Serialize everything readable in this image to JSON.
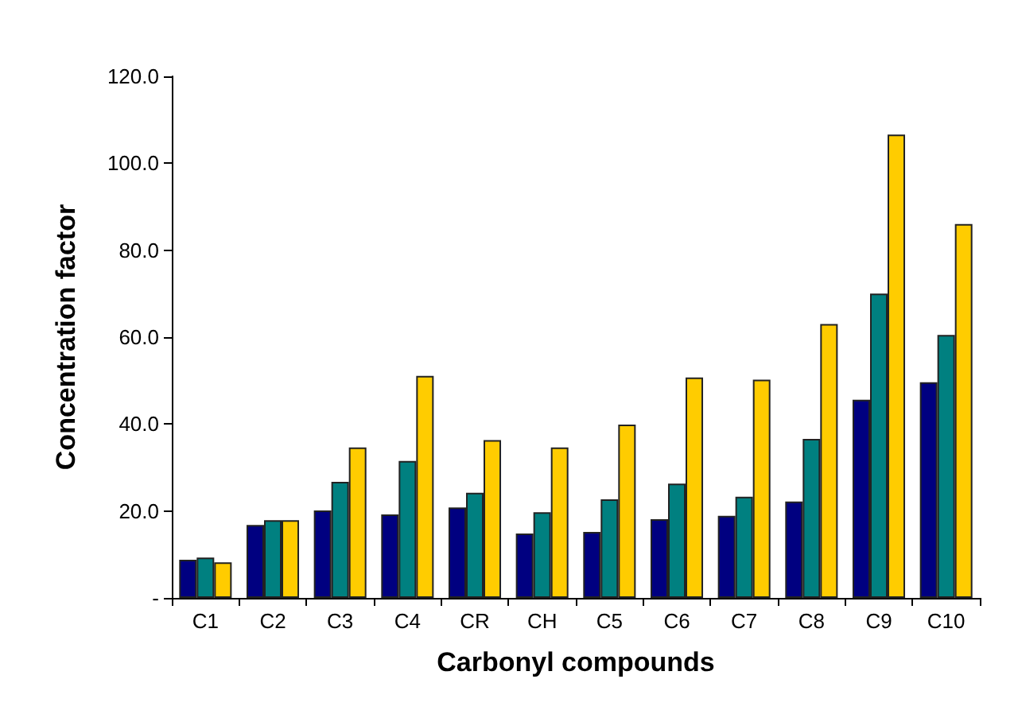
{
  "chart_data": {
    "type": "bar",
    "xlabel": "Carbonyl compounds",
    "ylabel": "Concentration factor",
    "categories": [
      "C1",
      "C2",
      "C3",
      "C4",
      "CR",
      "CH",
      "C5",
      "C6",
      "C7",
      "C8",
      "C9",
      "C10"
    ],
    "series": [
      {
        "color": "#000080",
        "values": [
          8.8,
          16.8,
          20.1,
          19.2,
          20.8,
          14.8,
          15.2,
          18.1,
          18.9,
          22.2,
          45.6,
          49.6
        ]
      },
      {
        "color": "#008080",
        "values": [
          9.3,
          17.9,
          26.7,
          31.5,
          24.2,
          19.7,
          22.7,
          26.3,
          23.3,
          36.6,
          70.0,
          60.5
        ]
      },
      {
        "color": "#ffcc00",
        "values": [
          8.2,
          17.9,
          34.6,
          51.1,
          36.3,
          34.6,
          39.9,
          50.7,
          50.2,
          63.0,
          106.6,
          86.0
        ]
      }
    ],
    "ylim": [
      0,
      120
    ],
    "yticks": [
      {
        "value": 0,
        "label": "-"
      },
      {
        "value": 20,
        "label": "20.0"
      },
      {
        "value": 40,
        "label": "40.0"
      },
      {
        "value": 60,
        "label": "60.0"
      },
      {
        "value": 80,
        "label": "80.0"
      },
      {
        "value": 100,
        "label": "100.0"
      },
      {
        "value": 120,
        "label": "120.0"
      }
    ],
    "grid": false
  }
}
